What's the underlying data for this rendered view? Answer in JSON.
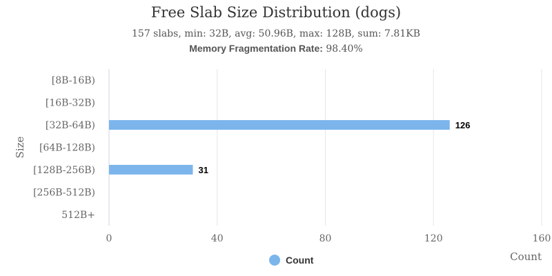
{
  "header": {
    "title": "Free Slab Size Distribution (dogs)",
    "subtitle": "157 slabs, min: 32B, avg: 50.96B, max: 128B, sum: 7.81KB",
    "fragmentation_label": "Memory Fragmentation Rate:",
    "fragmentation_value": "98.40%"
  },
  "legend": {
    "label": "Count",
    "color": "#7cb5ec"
  },
  "chart_data": {
    "type": "bar",
    "orientation": "horizontal",
    "title": "Free Slab Size Distribution (dogs)",
    "subtitle": "157 slabs, min: 32B, avg: 50.96B, max: 128B, sum: 7.81KB",
    "xlabel": "Count",
    "ylabel": "Size",
    "categories": [
      "[8B-16B)",
      "[16B-32B)",
      "[32B-64B)",
      "[64B-128B)",
      "[128B-256B)",
      "[256B-512B)",
      "512B+"
    ],
    "series": [
      {
        "name": "Count",
        "values": [
          0,
          0,
          126,
          0,
          31,
          0,
          0
        ],
        "color": "#7cb5ec"
      }
    ],
    "data_labels": [
      "",
      "",
      "126",
      "",
      "31",
      "",
      ""
    ],
    "xlim": [
      0,
      160
    ],
    "xticks": [
      0,
      40,
      80,
      120,
      160
    ],
    "grid": true,
    "legend_position": "bottom-center"
  }
}
